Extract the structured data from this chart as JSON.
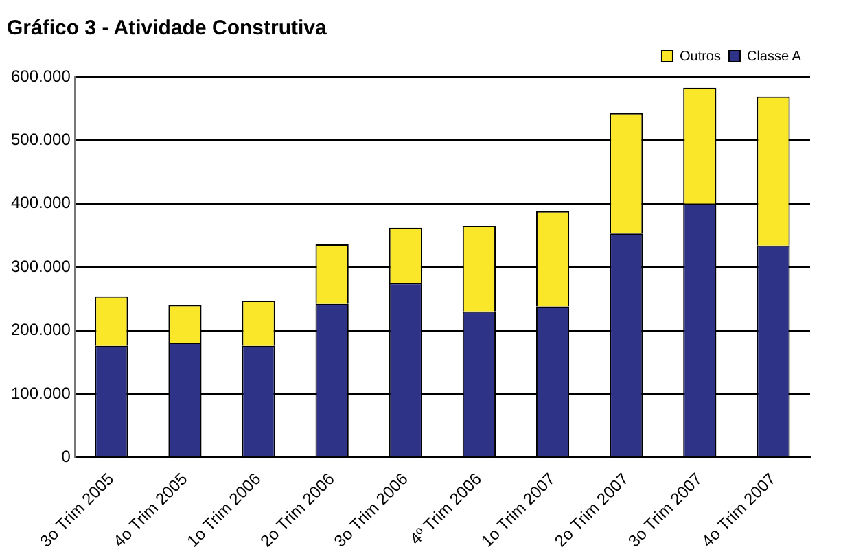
{
  "chart_data": {
    "type": "bar",
    "title": "Gráfico 3 - Atividade Construtiva",
    "stacked": true,
    "categories": [
      "3o Trim 2005",
      "4o Trim 2005",
      "1o Trim 2006",
      "2o Trim 2006",
      "3o Trim 2006",
      "4º Trim 2006",
      "1o Trim 2007",
      "2o Trim 2007",
      "3o Trim 2007",
      "4o Trim 2007"
    ],
    "series": [
      {
        "name": "Classe A",
        "color": "#2e3388",
        "values": [
          176000,
          181000,
          176000,
          242000,
          275000,
          230000,
          238000,
          353000,
          400000,
          334000
        ]
      },
      {
        "name": "Outros",
        "color": "#fbe72a",
        "values": [
          78000,
          59000,
          71000,
          94000,
          87000,
          135000,
          150000,
          190000,
          183000,
          235000
        ]
      }
    ],
    "ylim": [
      0,
      600000
    ],
    "yticks": [
      {
        "value": 0,
        "label": "0"
      },
      {
        "value": 100000,
        "label": "100.000"
      },
      {
        "value": 200000,
        "label": "200.000"
      },
      {
        "value": 300000,
        "label": "300.000"
      },
      {
        "value": 400000,
        "label": "400.000"
      },
      {
        "value": 500000,
        "label": "500.000"
      },
      {
        "value": 600000,
        "label": "600.000"
      }
    ],
    "grid": "y",
    "legend": "top right"
  }
}
